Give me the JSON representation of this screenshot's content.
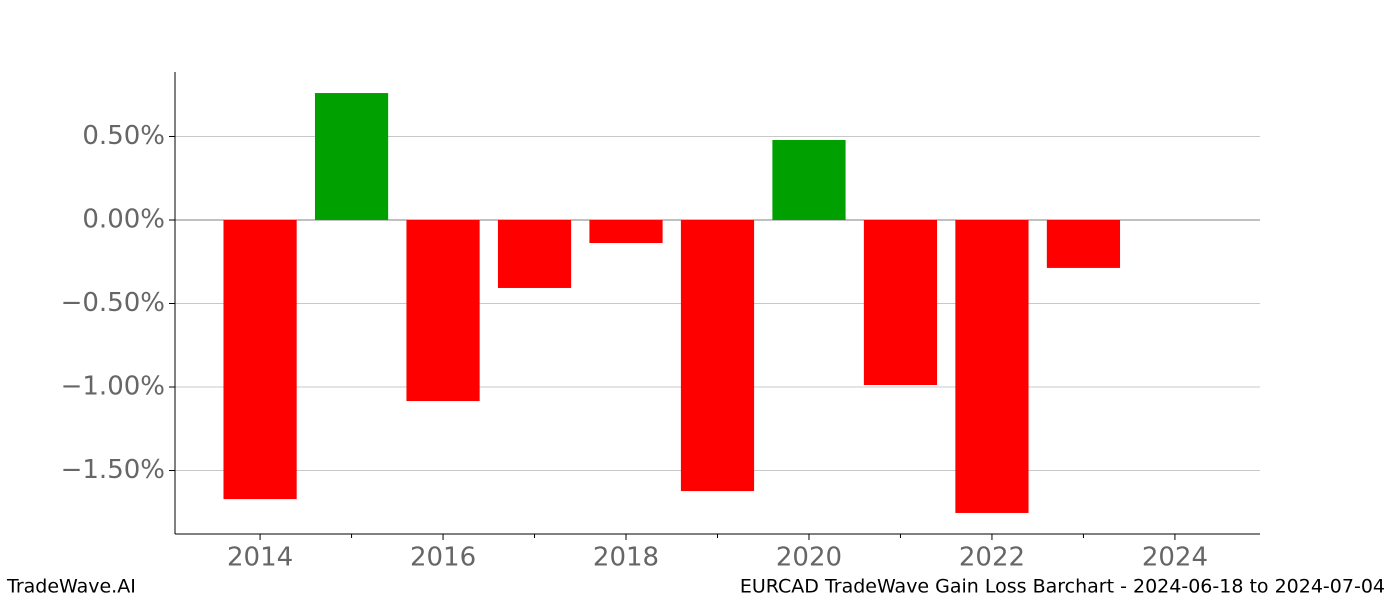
{
  "chart_data": {
    "type": "bar",
    "x": [
      2014,
      2015,
      2016,
      2017,
      2018,
      2019,
      2020,
      2021,
      2022,
      2023
    ],
    "values": [
      -1.671,
      0.76,
      -1.084,
      -0.407,
      -0.138,
      -1.623,
      0.479,
      -0.988,
      -1.754,
      -0.287
    ],
    "positive_color": "#00a000",
    "negative_color": "#ff0000",
    "xlim": [
      2013.07,
      2024.93
    ],
    "xticks": [
      2014,
      2016,
      2018,
      2020,
      2022,
      2024
    ],
    "xminorticks": [
      2015,
      2017,
      2019,
      2021,
      2023
    ],
    "ylim": [
      -1.88,
      0.886
    ],
    "yticks": [
      {
        "value": 0.5,
        "label": "0.50%"
      },
      {
        "value": 0,
        "label": "0.00%"
      },
      {
        "value": -0.5,
        "label": "−0.50%"
      },
      {
        "value": -1,
        "label": "−1.00%"
      },
      {
        "value": -1.5,
        "label": "−1.50%"
      }
    ],
    "grid": true
  },
  "footer": {
    "left": "TradeWave.AI",
    "right": "EURCAD TradeWave Gain Loss Barchart - 2024-06-18 to 2024-07-04"
  }
}
